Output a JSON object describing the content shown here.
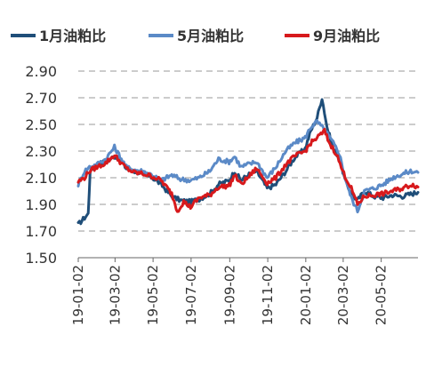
{
  "chart_data": {
    "type": "line",
    "title": "",
    "xlabel": "",
    "ylabel": "",
    "ylim": [
      1.5,
      2.9
    ],
    "yticks": [
      "1.50",
      "1.70",
      "1.90",
      "2.10",
      "2.30",
      "2.50",
      "2.70",
      "2.90"
    ],
    "xticks": [
      "19-01-02",
      "19-03-02",
      "19-05-02",
      "19-07-02",
      "19-09-02",
      "19-11-02",
      "20-01-02",
      "20-03-02",
      "20-05-02"
    ],
    "x_start": "2019-01-02",
    "x_end": "2020-06-30",
    "grid": "horizontal dashed",
    "legend_position": "top",
    "series": [
      {
        "name": "1月油粕比",
        "color": "#1f4e79",
        "points": [
          [
            "2019-01-02",
            1.75
          ],
          [
            "2019-01-10",
            1.79
          ],
          [
            "2019-01-18",
            1.83
          ],
          [
            "2019-01-21",
            2.15
          ],
          [
            "2019-02-01",
            2.2
          ],
          [
            "2019-02-15",
            2.22
          ],
          [
            "2019-03-01",
            2.26
          ],
          [
            "2019-03-10",
            2.24
          ],
          [
            "2019-03-20",
            2.17
          ],
          [
            "2019-04-01",
            2.15
          ],
          [
            "2019-04-15",
            2.13
          ],
          [
            "2019-05-01",
            2.1
          ],
          [
            "2019-05-15",
            2.05
          ],
          [
            "2019-06-01",
            1.96
          ],
          [
            "2019-06-15",
            1.93
          ],
          [
            "2019-07-01",
            1.92
          ],
          [
            "2019-07-15",
            1.94
          ],
          [
            "2019-08-01",
            1.98
          ],
          [
            "2019-08-15",
            2.05
          ],
          [
            "2019-09-01",
            2.08
          ],
          [
            "2019-09-10",
            2.15
          ],
          [
            "2019-09-20",
            2.08
          ],
          [
            "2019-10-01",
            2.12
          ],
          [
            "2019-10-15",
            2.15
          ],
          [
            "2019-11-01",
            2.02
          ],
          [
            "2019-11-15",
            2.05
          ],
          [
            "2019-12-01",
            2.15
          ],
          [
            "2019-12-15",
            2.25
          ],
          [
            "2020-01-01",
            2.32
          ],
          [
            "2020-01-10",
            2.45
          ],
          [
            "2020-01-20",
            2.55
          ],
          [
            "2020-01-28",
            2.7
          ],
          [
            "2020-02-05",
            2.48
          ],
          [
            "2020-02-15",
            2.32
          ],
          [
            "2020-02-25",
            2.25
          ],
          [
            "2020-03-05",
            2.08
          ],
          [
            "2020-03-15",
            1.98
          ],
          [
            "2020-03-25",
            1.93
          ],
          [
            "2020-04-05",
            2.0
          ],
          [
            "2020-04-20",
            1.96
          ],
          [
            "2020-05-05",
            1.95
          ],
          [
            "2020-05-20",
            1.97
          ],
          [
            "2020-06-05",
            1.96
          ],
          [
            "2020-06-20",
            1.98
          ],
          [
            "2020-06-30",
            1.99
          ]
        ]
      },
      {
        "name": "5月油粕比",
        "color": "#5b8ac7",
        "points": [
          [
            "2019-01-02",
            2.05
          ],
          [
            "2019-01-12",
            2.15
          ],
          [
            "2019-01-20",
            2.18
          ],
          [
            "2019-02-01",
            2.2
          ],
          [
            "2019-02-15",
            2.24
          ],
          [
            "2019-03-01",
            2.33
          ],
          [
            "2019-03-10",
            2.26
          ],
          [
            "2019-03-20",
            2.18
          ],
          [
            "2019-04-01",
            2.16
          ],
          [
            "2019-04-15",
            2.15
          ],
          [
            "2019-05-01",
            2.12
          ],
          [
            "2019-05-15",
            2.08
          ],
          [
            "2019-06-01",
            2.12
          ],
          [
            "2019-06-15",
            2.09
          ],
          [
            "2019-07-01",
            2.08
          ],
          [
            "2019-07-15",
            2.1
          ],
          [
            "2019-08-01",
            2.15
          ],
          [
            "2019-08-15",
            2.24
          ],
          [
            "2019-09-01",
            2.22
          ],
          [
            "2019-09-10",
            2.26
          ],
          [
            "2019-09-20",
            2.18
          ],
          [
            "2019-10-01",
            2.2
          ],
          [
            "2019-10-15",
            2.22
          ],
          [
            "2019-11-01",
            2.1
          ],
          [
            "2019-11-15",
            2.18
          ],
          [
            "2019-12-01",
            2.3
          ],
          [
            "2019-12-15",
            2.36
          ],
          [
            "2020-01-01",
            2.4
          ],
          [
            "2020-01-10",
            2.48
          ],
          [
            "2020-01-20",
            2.52
          ],
          [
            "2020-02-01",
            2.46
          ],
          [
            "2020-02-15",
            2.36
          ],
          [
            "2020-02-25",
            2.28
          ],
          [
            "2020-03-05",
            2.1
          ],
          [
            "2020-03-15",
            1.95
          ],
          [
            "2020-03-25",
            1.85
          ],
          [
            "2020-04-05",
            2.0
          ],
          [
            "2020-04-20",
            2.02
          ],
          [
            "2020-05-05",
            2.05
          ],
          [
            "2020-05-20",
            2.1
          ],
          [
            "2020-06-05",
            2.13
          ],
          [
            "2020-06-20",
            2.15
          ],
          [
            "2020-06-30",
            2.14
          ]
        ]
      },
      {
        "name": "9月油粕比",
        "color": "#d7191c",
        "points": [
          [
            "2019-01-02",
            2.07
          ],
          [
            "2019-01-12",
            2.1
          ],
          [
            "2019-01-20",
            2.15
          ],
          [
            "2019-02-01",
            2.18
          ],
          [
            "2019-02-15",
            2.21
          ],
          [
            "2019-03-01",
            2.27
          ],
          [
            "2019-03-10",
            2.22
          ],
          [
            "2019-03-20",
            2.17
          ],
          [
            "2019-04-01",
            2.14
          ],
          [
            "2019-04-15",
            2.13
          ],
          [
            "2019-05-01",
            2.11
          ],
          [
            "2019-05-15",
            2.08
          ],
          [
            "2019-06-01",
            1.98
          ],
          [
            "2019-06-10",
            1.85
          ],
          [
            "2019-06-20",
            1.92
          ],
          [
            "2019-07-01",
            1.88
          ],
          [
            "2019-07-15",
            1.95
          ],
          [
            "2019-08-01",
            1.97
          ],
          [
            "2019-08-15",
            2.03
          ],
          [
            "2019-09-01",
            2.04
          ],
          [
            "2019-09-10",
            2.12
          ],
          [
            "2019-09-20",
            2.05
          ],
          [
            "2019-10-01",
            2.1
          ],
          [
            "2019-10-15",
            2.17
          ],
          [
            "2019-11-01",
            2.06
          ],
          [
            "2019-11-15",
            2.1
          ],
          [
            "2019-12-01",
            2.2
          ],
          [
            "2019-12-15",
            2.26
          ],
          [
            "2020-01-01",
            2.3
          ],
          [
            "2020-01-10",
            2.36
          ],
          [
            "2020-01-20",
            2.4
          ],
          [
            "2020-02-01",
            2.45
          ],
          [
            "2020-02-10",
            2.35
          ],
          [
            "2020-02-20",
            2.28
          ],
          [
            "2020-03-01",
            2.15
          ],
          [
            "2020-03-15",
            2.02
          ],
          [
            "2020-03-25",
            1.9
          ],
          [
            "2020-04-05",
            1.96
          ],
          [
            "2020-04-20",
            1.97
          ],
          [
            "2020-05-05",
            1.98
          ],
          [
            "2020-05-20",
            2.0
          ],
          [
            "2020-06-05",
            2.02
          ],
          [
            "2020-06-20",
            2.05
          ],
          [
            "2020-06-30",
            2.03
          ]
        ]
      }
    ]
  }
}
